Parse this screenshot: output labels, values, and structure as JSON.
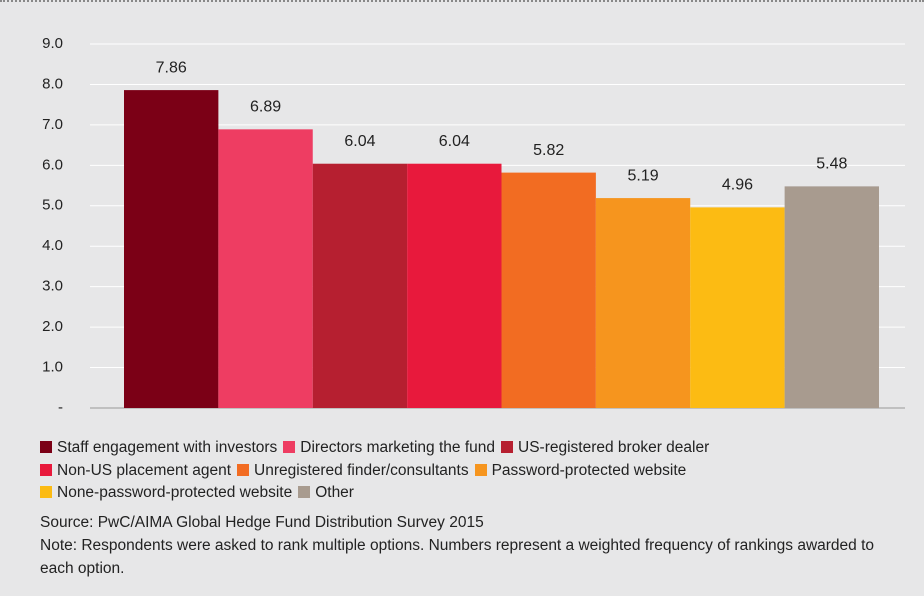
{
  "chart_data": {
    "type": "bar",
    "series": [
      {
        "name": "Staff engagement with investors",
        "color": "#7b0016",
        "values": [
          7.86
        ]
      },
      {
        "name": "Directors marketing the fund",
        "color": "#ee3d62",
        "values": [
          6.89
        ]
      },
      {
        "name": "US-registered broker dealer",
        "color": "#b61f30",
        "values": [
          6.04
        ]
      },
      {
        "name": "Non-US placement agent",
        "color": "#e8193c",
        "values": [
          6.04
        ]
      },
      {
        "name": "Unregistered finder/consultants",
        "color": "#f26c22",
        "values": [
          5.82
        ]
      },
      {
        "name": "Password-protected website",
        "color": "#f6951e",
        "values": [
          5.19
        ]
      },
      {
        "name": "None-password-protected website",
        "color": "#fcbb13",
        "values": [
          4.96
        ]
      },
      {
        "name": "Other",
        "color": "#a89b8f",
        "values": [
          5.48
        ]
      }
    ],
    "ylim": [
      0,
      9
    ],
    "yticks": [
      {
        "value": 0,
        "label": "-"
      },
      {
        "value": 1,
        "label": "1.0"
      },
      {
        "value": 2,
        "label": "2.0"
      },
      {
        "value": 3,
        "label": "3.0"
      },
      {
        "value": 4,
        "label": "4.0"
      },
      {
        "value": 5,
        "label": "5.0"
      },
      {
        "value": 6,
        "label": "6.0"
      },
      {
        "value": 7,
        "label": "7.0"
      },
      {
        "value": 8,
        "label": "8.0"
      },
      {
        "value": 9,
        "label": "9.0"
      }
    ],
    "grid": true,
    "source": "Source: PwC/AIMA Global Hedge Fund Distribution Survey 2015",
    "note": "Note: Respondents were asked to rank multiple options. Numbers represent a weighted frequency of rankings awarded to each option."
  }
}
